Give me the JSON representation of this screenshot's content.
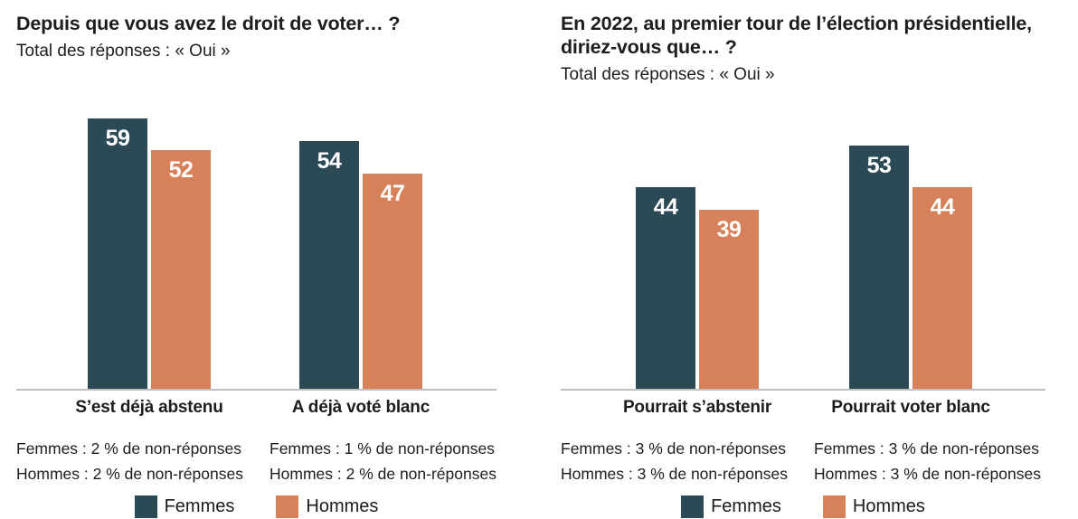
{
  "colors": {
    "femmes": "#2c4a56",
    "hommes": "#d7815b",
    "axis_line": "#bfbfbf",
    "text": "#1d1d1b",
    "value_label": "#ffffff",
    "background": "#ffffff"
  },
  "legend": {
    "position": "bottom",
    "items": [
      {
        "label": "Femmes",
        "color_key": "femmes"
      },
      {
        "label": "Hommes",
        "color_key": "hommes"
      }
    ]
  },
  "chart_data": [
    {
      "type": "bar",
      "title": "Depuis que vous avez le droit de voter… ?",
      "subtitle": "Total des réponses : « Oui »",
      "categories": [
        "S’est déjà abstenu",
        "A déjà voté blanc"
      ],
      "series": [
        {
          "name": "Femmes",
          "color_key": "femmes",
          "values": [
            59,
            54
          ]
        },
        {
          "name": "Hommes",
          "color_key": "hommes",
          "values": [
            52,
            47
          ]
        }
      ],
      "footnotes": [
        [
          "Femmes : 2 % de non-réponses",
          "Hommes : 2 % de non-réponses"
        ],
        [
          "Femmes : 1 % de non-réponses",
          "Hommes : 2 % de non-réponses"
        ]
      ],
      "xlabel": "",
      "ylabel": "",
      "ylim": [
        0,
        61
      ],
      "gridlines": false,
      "value_labels": "inside-top",
      "legend_position": "bottom"
    },
    {
      "type": "bar",
      "title": "En 2022, au premier tour de l’élection présidentielle, diriez-vous que… ?",
      "subtitle": "Total des réponses : « Oui »",
      "categories": [
        "Pourrait s’abstenir",
        "Pourrait voter blanc"
      ],
      "series": [
        {
          "name": "Femmes",
          "color_key": "femmes",
          "values": [
            44,
            53
          ]
        },
        {
          "name": "Hommes",
          "color_key": "hommes",
          "values": [
            39,
            44
          ]
        }
      ],
      "footnotes": [
        [
          "Femmes : 3 % de non-réponses",
          "Hommes : 3 % de non-réponses"
        ],
        [
          "Femmes : 3 % de non-réponses",
          "Hommes : 3 % de non-réponses"
        ]
      ],
      "xlabel": "",
      "ylabel": "",
      "ylim": [
        0,
        61
      ],
      "gridlines": false,
      "value_labels": "inside-top",
      "legend_position": "bottom"
    }
  ]
}
